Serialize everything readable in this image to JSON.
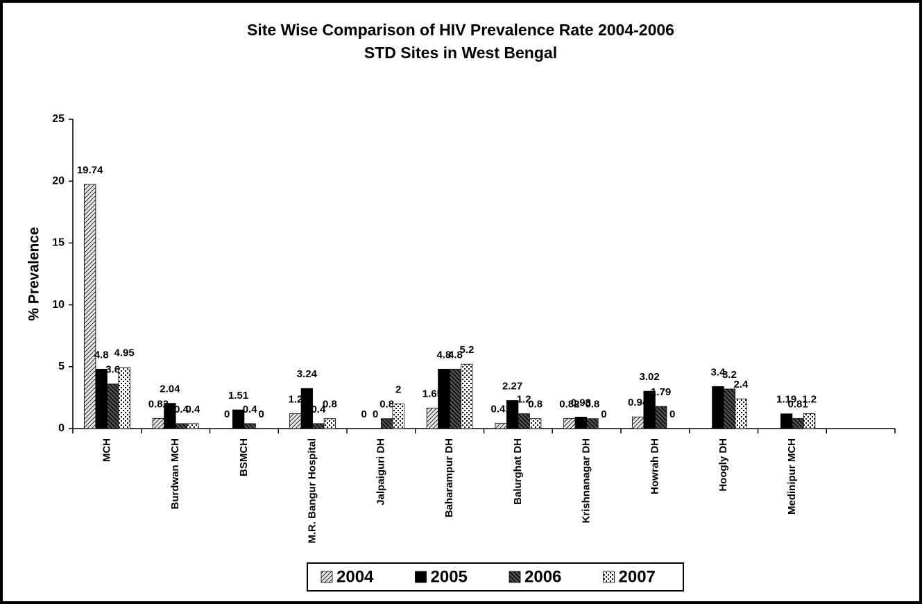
{
  "chart_data": {
    "type": "bar",
    "title": "Site Wise Comparison of HIV Prevalence Rate 2004-2006",
    "subtitle": "STD Sites in West Bengal",
    "y_label": "% Prevalence",
    "categories": [
      "MCH",
      "Burdwan MCH",
      "BSMCH",
      "M.R. Bangur Hospital",
      "Jalpaiguri DH",
      "Baharampur DH",
      "Balurghat DH",
      "Krishnanagar DH",
      "Howrah DH",
      "Hoogly DH",
      "Medinipur MCH",
      null
    ],
    "series": [
      {
        "name": "2004",
        "color": "#e8e8e8",
        "values": [
          19.74,
          0.82,
          0,
          1.2,
          0,
          1.65,
          0.41,
          0.82,
          0.94,
          null,
          null,
          null
        ]
      },
      {
        "name": "2005",
        "color": "#000000",
        "values": [
          4.8,
          2.04,
          1.51,
          3.24,
          0,
          4.8,
          2.27,
          0.93,
          3.02,
          3.4,
          1.19,
          null
        ]
      },
      {
        "name": "2006",
        "color": "#505050",
        "values": [
          3.6,
          0.4,
          0.4,
          0.4,
          0.8,
          4.8,
          1.2,
          0.8,
          1.79,
          3.2,
          0.81,
          null
        ]
      },
      {
        "name": "2007",
        "color": "#ffffff",
        "values": [
          4.95,
          0.4,
          0,
          0.8,
          2,
          5.2,
          0.8,
          0,
          0,
          2.4,
          1.2,
          null
        ]
      }
    ],
    "ylim": [
      0,
      25
    ],
    "yticks": [
      0,
      5,
      10,
      15,
      20,
      25
    ],
    "legend": "bottom"
  }
}
